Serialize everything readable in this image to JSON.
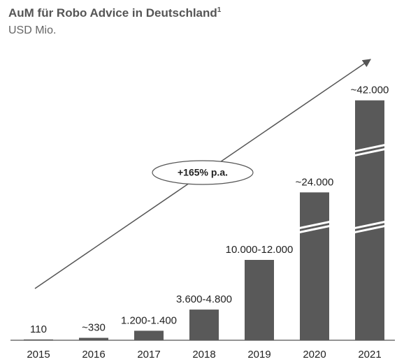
{
  "chart_data": {
    "type": "bar",
    "title": "AuM für Robo Advice in Deutschland",
    "title_note": "1",
    "subtitle": "USD Mio.",
    "annotation": "+165% p.a.",
    "categories": [
      "2015",
      "2016",
      "2017",
      "2018",
      "2019",
      "2020",
      "2021"
    ],
    "low": [
      110,
      330,
      1200,
      3600,
      10000,
      24000,
      42000
    ],
    "high": [
      110,
      330,
      1400,
      4800,
      12000,
      24000,
      42000
    ],
    "value_labels": [
      "110",
      "~330",
      "1.200-1.400",
      "3.600-4.800",
      "10.000-12.000",
      "~24.000",
      "~42.000"
    ],
    "color": "#595959"
  }
}
